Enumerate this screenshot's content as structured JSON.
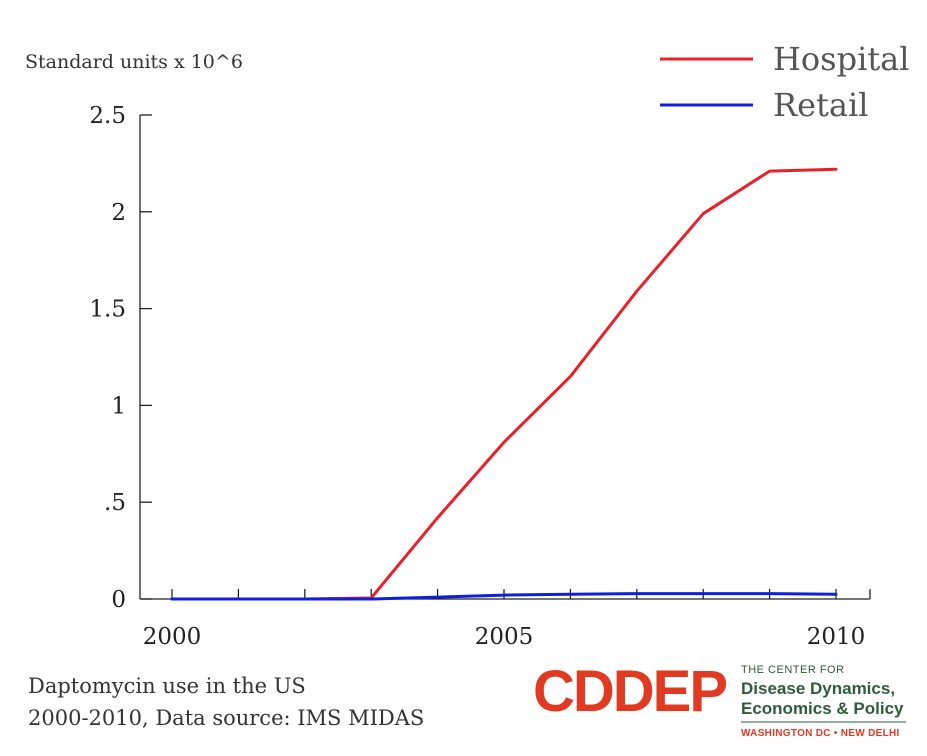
{
  "chart_data": {
    "type": "line",
    "ylabel": "Standard units x 10^6",
    "x": [
      2000,
      2001,
      2002,
      2003,
      2004,
      2005,
      2006,
      2007,
      2008,
      2009,
      2010
    ],
    "xticks": [
      2000,
      2005,
      2010
    ],
    "xtick_labels": [
      "2000",
      "2005",
      "2010"
    ],
    "yticks": [
      0,
      0.5,
      1,
      1.5,
      2,
      2.5
    ],
    "ytick_labels": [
      "0",
      ".5",
      "1",
      "1.5",
      "2",
      "2.5"
    ],
    "xlim": [
      2000,
      2010
    ],
    "ylim": [
      0,
      2.5
    ],
    "grid": false,
    "legend_position": "top-right",
    "series": [
      {
        "name": "Hospital",
        "color": "#e8202a",
        "x": [
          2000,
          2001,
          2002,
          2003,
          2004,
          2005,
          2006,
          2007,
          2008,
          2009,
          2010
        ],
        "values": [
          0,
          0,
          0,
          0.005,
          0.42,
          0.81,
          1.15,
          1.59,
          1.99,
          2.21,
          2.22
        ]
      },
      {
        "name": "Retail",
        "color": "#1020d8",
        "x": [
          2000,
          2001,
          2002,
          2003,
          2004,
          2005,
          2006,
          2007,
          2008,
          2009,
          2010
        ],
        "values": [
          0,
          0,
          0,
          0,
          0.01,
          0.02,
          0.025,
          0.028,
          0.028,
          0.028,
          0.025
        ]
      }
    ]
  },
  "caption": {
    "line1": "Daptomycin use in the US",
    "line2": "2000-2010, Data source: IMS MIDAS"
  },
  "logo": {
    "acronym": "CDDEP",
    "small": "THE CENTER FOR",
    "line1": "Disease Dynamics,",
    "line2": "Economics & Policy",
    "footer": "WASHINGTON DC • NEW DELHI"
  }
}
